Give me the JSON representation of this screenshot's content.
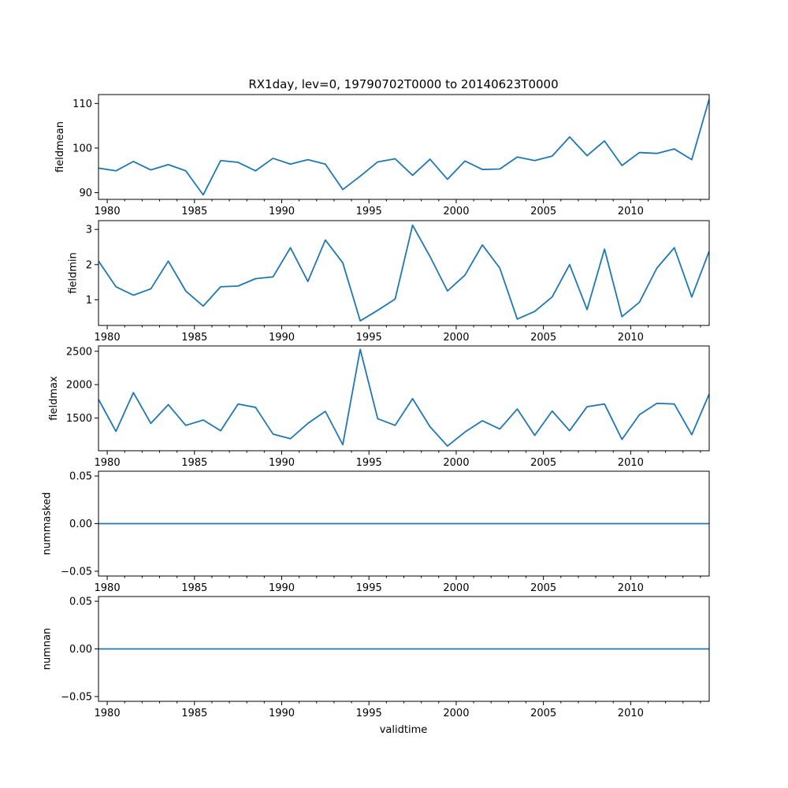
{
  "figure": {
    "title": "RX1day, lev=0, 19790702T0000 to 20140623T0000",
    "xlabel": "validtime"
  },
  "colors": {
    "line": "#1f77b4",
    "frame": "#000000"
  },
  "chart_data": [
    {
      "type": "line",
      "ylabel": "fieldmean",
      "x_major_ticks": [
        1980,
        1985,
        1990,
        1995,
        2000,
        2005,
        2010
      ],
      "x_tick_labels": [
        "1980",
        "1985",
        "1990",
        "1995",
        "2000",
        "2005",
        "2010"
      ],
      "xlim": [
        1979.5,
        2014.5
      ],
      "ylim": [
        88.5,
        112
      ],
      "y_ticks": [
        90,
        100,
        110
      ],
      "y_tick_labels": [
        "90",
        "100",
        "110"
      ],
      "x": [
        1979.5,
        1980.5,
        1981.5,
        1982.5,
        1983.5,
        1984.5,
        1985.5,
        1986.5,
        1987.5,
        1988.5,
        1989.5,
        1990.5,
        1991.5,
        1992.5,
        1993.5,
        1994.5,
        1995.5,
        1996.5,
        1997.5,
        1998.5,
        1999.5,
        2000.5,
        2001.5,
        2002.5,
        2003.5,
        2004.5,
        2005.5,
        2006.5,
        2007.5,
        2008.5,
        2009.5,
        2010.5,
        2011.5,
        2012.5,
        2013.5,
        2014.5
      ],
      "values": [
        95.5,
        94.9,
        97.0,
        95.1,
        96.3,
        94.9,
        89.5,
        97.2,
        96.8,
        94.9,
        97.7,
        96.4,
        97.4,
        96.4,
        90.7,
        93.7,
        96.9,
        97.6,
        93.9,
        97.5,
        93.0,
        97.1,
        95.2,
        95.3,
        98.0,
        97.2,
        98.2,
        102.5,
        98.3,
        101.6,
        96.1,
        99.0,
        98.8,
        99.8,
        97.4,
        111.0
      ]
    },
    {
      "type": "line",
      "ylabel": "fieldmin",
      "x_major_ticks": [
        1980,
        1985,
        1990,
        1995,
        2000,
        2005,
        2010
      ],
      "x_tick_labels": [
        "1980",
        "1985",
        "1990",
        "1995",
        "2000",
        "2005",
        "2010"
      ],
      "xlim": [
        1979.5,
        2014.5
      ],
      "ylim": [
        0.27,
        3.25
      ],
      "y_ticks": [
        1,
        2,
        3
      ],
      "y_tick_labels": [
        "1",
        "2",
        "3"
      ],
      "x": [
        1979.5,
        1980.5,
        1981.5,
        1982.5,
        1983.5,
        1984.5,
        1985.5,
        1986.5,
        1987.5,
        1988.5,
        1989.5,
        1990.5,
        1991.5,
        1992.5,
        1993.5,
        1994.5,
        1995.5,
        1996.5,
        1997.5,
        1998.5,
        1999.5,
        2000.5,
        2001.5,
        2002.5,
        2003.5,
        2004.5,
        2005.5,
        2006.5,
        2007.5,
        2008.5,
        2009.5,
        2010.5,
        2011.5,
        2012.5,
        2013.5,
        2014.5
      ],
      "values": [
        2.1,
        1.37,
        1.13,
        1.31,
        2.1,
        1.25,
        0.82,
        1.37,
        1.39,
        1.6,
        1.65,
        2.48,
        1.52,
        2.7,
        2.05,
        0.4,
        0.7,
        1.02,
        3.12,
        2.23,
        1.25,
        1.7,
        2.56,
        1.9,
        0.45,
        0.67,
        1.08,
        2.0,
        0.72,
        2.44,
        0.52,
        0.93,
        1.9,
        2.48,
        1.08,
        2.38
      ]
    },
    {
      "type": "line",
      "ylabel": "fieldmax",
      "x_major_ticks": [
        1980,
        1985,
        1990,
        1995,
        2000,
        2005,
        2010
      ],
      "x_tick_labels": [
        "1980",
        "1985",
        "1990",
        "1995",
        "2000",
        "2005",
        "2010"
      ],
      "xlim": [
        1979.5,
        2014.5
      ],
      "ylim": [
        1010,
        2580
      ],
      "y_ticks": [
        1500,
        2000,
        2500
      ],
      "y_tick_labels": [
        "1500",
        "2000",
        "2500"
      ],
      "x": [
        1979.5,
        1980.5,
        1981.5,
        1982.5,
        1983.5,
        1984.5,
        1985.5,
        1986.5,
        1987.5,
        1988.5,
        1989.5,
        1990.5,
        1991.5,
        1992.5,
        1993.5,
        1994.5,
        1995.5,
        1996.5,
        1997.5,
        1998.5,
        1999.5,
        2000.5,
        2001.5,
        2002.5,
        2003.5,
        2004.5,
        2005.5,
        2006.5,
        2007.5,
        2008.5,
        2009.5,
        2010.5,
        2011.5,
        2012.5,
        2013.5,
        2014.5
      ],
      "values": [
        1780,
        1300,
        1880,
        1420,
        1700,
        1390,
        1470,
        1310,
        1710,
        1660,
        1260,
        1190,
        1420,
        1600,
        1100,
        2530,
        1490,
        1390,
        1790,
        1370,
        1080,
        1290,
        1460,
        1335,
        1635,
        1240,
        1605,
        1310,
        1670,
        1710,
        1180,
        1550,
        1720,
        1710,
        1250,
        1860
      ]
    },
    {
      "type": "line",
      "ylabel": "nummasked",
      "x_major_ticks": [
        1980,
        1985,
        1990,
        1995,
        2000,
        2005,
        2010
      ],
      "x_tick_labels": [
        "1980",
        "1985",
        "1990",
        "1995",
        "2000",
        "2005",
        "2010"
      ],
      "xlim": [
        1979.5,
        2014.5
      ],
      "ylim": [
        -0.055,
        0.055
      ],
      "y_ticks": [
        -0.05,
        0.0,
        0.05
      ],
      "y_tick_labels": [
        "−0.05",
        "0.00",
        "0.05"
      ],
      "x": [
        1979.5,
        2014.5
      ],
      "values": [
        0,
        0
      ]
    },
    {
      "type": "line",
      "ylabel": "numnan",
      "x_major_ticks": [
        1980,
        1985,
        1990,
        1995,
        2000,
        2005,
        2010
      ],
      "x_tick_labels": [
        "1980",
        "1985",
        "1990",
        "1995",
        "2000",
        "2005",
        "2010"
      ],
      "xlim": [
        1979.5,
        2014.5
      ],
      "ylim": [
        -0.055,
        0.055
      ],
      "y_ticks": [
        -0.05,
        0.0,
        0.05
      ],
      "y_tick_labels": [
        "−0.05",
        "0.00",
        "0.05"
      ],
      "x": [
        1979.5,
        2014.5
      ],
      "values": [
        0,
        0
      ]
    }
  ]
}
